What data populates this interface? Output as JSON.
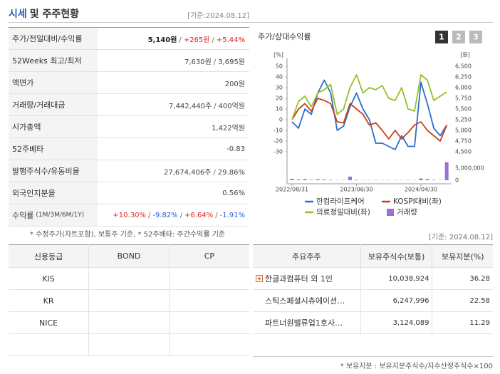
{
  "header": {
    "title": "시세",
    "title_rest": "및 주주현황",
    "date": "[기준:2024.08.12]"
  },
  "summary": {
    "separator": "/",
    "rows": [
      {
        "label": "주가/전일대비/수익률",
        "values": [
          "5,140원",
          "+265원",
          "+5.44%"
        ],
        "colors": [
          "#222222",
          "#e0201a",
          "#e0201a"
        ]
      },
      {
        "label": "52Weeks 최고/최저",
        "values": [
          "7,630원",
          "3,695원"
        ]
      },
      {
        "label": "액면가",
        "values": [
          "200원"
        ]
      },
      {
        "label": "거래량/거래대금",
        "values": [
          "7,442,440주",
          "400억원"
        ]
      },
      {
        "label": "시가총액",
        "values": [
          "1,422억원"
        ]
      },
      {
        "label": "52주베타",
        "values": [
          "-0.83"
        ]
      },
      {
        "label": "발행주식수/유동비율",
        "values": [
          "27,674,406주",
          "29.86%"
        ]
      },
      {
        "label": "외국인지분율",
        "values": [
          "0.56%"
        ]
      },
      {
        "label": "수익률",
        "label_note": "(1M/3M/6M/1Y)",
        "values": [
          "+10.30%",
          "-9.82%",
          "+6.64%",
          "-1.91%"
        ],
        "colors": [
          "#e0201a",
          "#2a5bd7",
          "#e0201a",
          "#2a5bd7"
        ]
      }
    ],
    "footnote": "* 수정주가(차트포함), 보통주 기준, * 52주베타: 주간수익률 기준"
  },
  "chart_data": {
    "type": "line",
    "title": "주가/상대수익률",
    "buttons": [
      "1",
      "2",
      "3"
    ],
    "categories": [
      "2022/08/31",
      null,
      null,
      null,
      null,
      null,
      null,
      null,
      null,
      null,
      "2023/06/30",
      null,
      null,
      null,
      null,
      null,
      null,
      null,
      null,
      null,
      "2024/04/30",
      null,
      null,
      null,
      null
    ],
    "ylabel": "[%]",
    "y2label": "[원]",
    "ylim": [
      -30,
      50
    ],
    "yticks": [
      50,
      40,
      30,
      20,
      10,
      0,
      -10,
      -20,
      -30
    ],
    "y2lim": [
      4500,
      6500
    ],
    "y2ticks": [
      {
        "value": 6500,
        "label": "6,500"
      },
      {
        "value": 6250,
        "label": "6,250"
      },
      {
        "value": 6000,
        "label": "6,000"
      },
      {
        "value": 5750,
        "label": "5,750"
      },
      {
        "value": 5500,
        "label": "5,500"
      },
      {
        "value": 5250,
        "label": "5,250"
      },
      {
        "value": 5000,
        "label": "5,000"
      },
      {
        "value": 4750,
        "label": "4,750"
      },
      {
        "value": 4500,
        "label": "4,500"
      }
    ],
    "vlim": [
      0,
      8000000
    ],
    "vticks": [
      {
        "value": 5000000,
        "label": "5,000,000"
      },
      0
    ],
    "series": [
      {
        "name": "한컴라이프케어",
        "color": "#2a6fc9",
        "axis": "y2",
        "values": [
          5200,
          5050,
          5500,
          5375,
          5875,
          6175,
          5875,
          5000,
          5100,
          5550,
          5875,
          5500,
          5250,
          4700,
          4700,
          4625,
          4550,
          4875,
          4625,
          4625,
          6125,
          5625,
          5050,
          4875,
          5125
        ]
      },
      {
        "name": "KOSPI대비(좌)",
        "color": "#c8401c",
        "axis": "y",
        "values": [
          0,
          10,
          15,
          8,
          20,
          18,
          15,
          -2,
          -3,
          15,
          10,
          5,
          -5,
          -3,
          -10,
          -18,
          -10,
          -18,
          -12,
          -5,
          -2,
          -10,
          -15,
          -20,
          -5
        ]
      },
      {
        "name": "의료정밀대비(좌)",
        "color": "#93c02c",
        "axis": "y",
        "values": [
          0,
          17,
          22,
          12,
          25,
          28,
          33,
          5,
          10,
          30,
          42,
          25,
          30,
          28,
          32,
          20,
          18,
          30,
          10,
          8,
          42,
          37,
          18,
          22,
          26
        ]
      }
    ],
    "volume": {
      "name": "거래량",
      "color": "#9b6fd6",
      "values": [
        600000,
        300000,
        500000,
        200000,
        400000,
        300000,
        200000,
        100000,
        100000,
        1500000,
        200000,
        100000,
        100000,
        100000,
        100000,
        100000,
        100000,
        100000,
        100000,
        100000,
        700000,
        500000,
        200000,
        100000,
        7442440
      ]
    }
  },
  "credit": {
    "headers": [
      "신용등급",
      "BOND",
      "CP"
    ],
    "agencies": [
      "KIS",
      "KR",
      "NICE"
    ]
  },
  "shareholders": {
    "date": "[기준: 2024.08.12]",
    "headers": [
      "주요주주",
      "보유주식수(보통)",
      "보유지분(%)"
    ],
    "rows": [
      [
        "한글과컴퓨터 외 1인",
        "10,038,924",
        "36.28"
      ],
      [
        "스틱스페셜시츄에이션…",
        "6,247,996",
        "22.58"
      ],
      [
        "파트너원밸류업1호사…",
        "3,124,089",
        "11.29"
      ]
    ],
    "footnote": "* 보유지분 : 보유지분주식수/지수산정주식수×100"
  }
}
